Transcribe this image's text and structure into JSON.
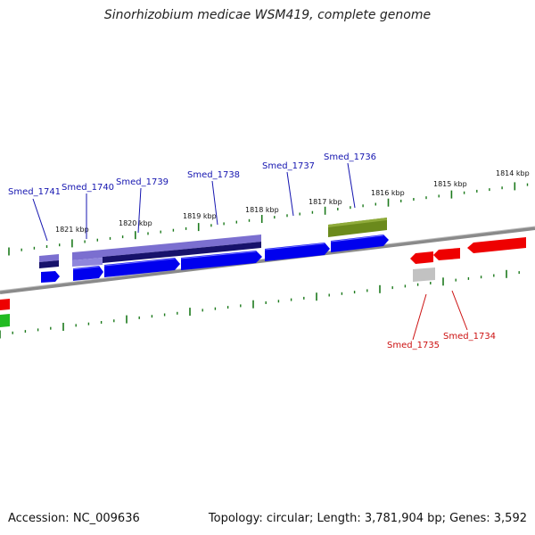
{
  "title": "Sinorhizobium medicae WSM419, complete genome",
  "footer": {
    "accession": "Accession: NC_009636",
    "summary": "Topology: circular; Length: 3,781,904 bp; Genes: 3,592"
  },
  "colors": {
    "forward_gene": "#0000ee",
    "reverse_gene": "#ee0000",
    "forward_label": "#1515b0",
    "reverse_label": "#cc1111",
    "tick": "#1c7a1c",
    "backbone": "#7a7a7a"
  },
  "ticks": [
    "1821 kbp",
    "1820 kbp",
    "1819 kbp",
    "1818 kbp",
    "1817 kbp",
    "1816 kbp",
    "1815 kbp",
    "1814 kbp"
  ],
  "genes_forward": [
    "Smed_1741",
    "Smed_1740",
    "Smed_1739",
    "Smed_1738",
    "Smed_1737",
    "Smed_1736"
  ],
  "genes_reverse": [
    "Smed_1735",
    "Smed_1734"
  ]
}
